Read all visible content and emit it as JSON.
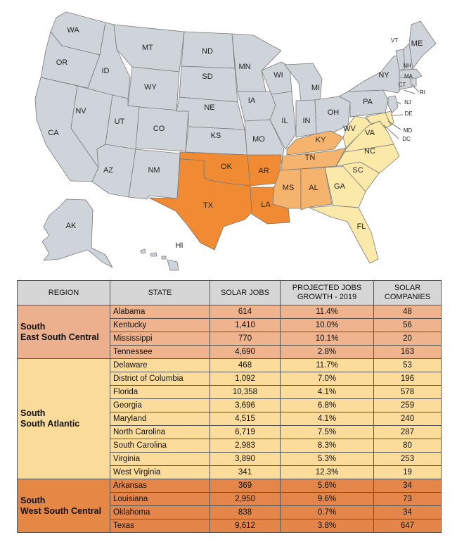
{
  "colors": {
    "other": "#ced4da",
    "west_south_central": "#f08a33",
    "east_south_central": "#f5b46e",
    "south_atlantic": "#fbe9a9",
    "border": "#7a7a7a"
  },
  "map_labels": {
    "WA": "WA",
    "OR": "OR",
    "CA": "CA",
    "ID": "ID",
    "NV": "NV",
    "MT": "MT",
    "WY": "WY",
    "UT": "UT",
    "AZ": "AZ",
    "CO": "CO",
    "NM": "NM",
    "ND": "ND",
    "SD": "SD",
    "NE": "NE",
    "KS": "KS",
    "OK": "OK",
    "TX": "TX",
    "MN": "MN",
    "IA": "IA",
    "MO": "MO",
    "AR": "AR",
    "LA": "LA",
    "WI": "WI",
    "IL": "IL",
    "MI": "MI",
    "IN": "IN",
    "OH": "OH",
    "KY": "KY",
    "TN": "TN",
    "MS": "MS",
    "AL": "AL",
    "GA": "GA",
    "FL": "FL",
    "SC": "SC",
    "NC": "NC",
    "VA": "VA",
    "WV": "WV",
    "PA": "PA",
    "NY": "NY",
    "ME": "ME",
    "VT": "VT",
    "NH": "NH",
    "MA": "MA",
    "CT": "CT",
    "RI": "RI",
    "NJ": "NJ",
    "DE": "DE",
    "MD": "MD",
    "DC": "DC",
    "AK": "AK",
    "HI": "HI"
  },
  "table": {
    "headers": {
      "region": "REGION",
      "state": "STATE",
      "jobs": "SOLAR JOBS",
      "growth_1": "PROJECTED JOBS",
      "growth_2": "GROWTH - 2019",
      "companies_1": "SOLAR",
      "companies_2": "COMPANIES"
    },
    "groups": [
      {
        "region_line1": "South",
        "region_line2": "East South Central",
        "region_color": "#ecb08e",
        "row_color": "#efb38d",
        "rows": [
          {
            "state": "Alabama",
            "jobs": "614",
            "growth": "11.4%",
            "companies": "48"
          },
          {
            "state": "Kentucky",
            "jobs": "1,410",
            "growth": "10.0%",
            "companies": "56"
          },
          {
            "state": "Mississippi",
            "jobs": "770",
            "growth": "10.1%",
            "companies": "20"
          },
          {
            "state": "Tennessee",
            "jobs": "4,690",
            "growth": "2.8%",
            "companies": "163"
          }
        ]
      },
      {
        "region_line1": "South",
        "region_line2": "South Atlantic",
        "region_color": "#fbdb9a",
        "row_color": "#fbdc9b",
        "rows": [
          {
            "state": "Delaware",
            "jobs": "468",
            "growth": "11.7%",
            "companies": "53"
          },
          {
            "state": "District of Columbia",
            "jobs": "1,092",
            "growth": "7.0%",
            "companies": "196"
          },
          {
            "state": "Florida",
            "jobs": "10,358",
            "growth": "4.1%",
            "companies": "578"
          },
          {
            "state": "Georgia",
            "jobs": "3,696",
            "growth": "6.8%",
            "companies": "259"
          },
          {
            "state": "Maryland",
            "jobs": "4,515",
            "growth": "4.1%",
            "companies": "240"
          },
          {
            "state": "North Carolina",
            "jobs": "6,719",
            "growth": "7.5%",
            "companies": "287"
          },
          {
            "state": "South Carolina",
            "jobs": "2,983",
            "growth": "8.3%",
            "companies": "80"
          },
          {
            "state": "Virginia",
            "jobs": "3,890",
            "growth": "5.3%",
            "companies": "253"
          },
          {
            "state": "West Virginia",
            "jobs": "341",
            "growth": "12.3%",
            "companies": "19"
          }
        ]
      },
      {
        "region_line1": "South",
        "region_line2": "West South Central",
        "region_color": "#e58846",
        "row_color": "#e4864a",
        "rows": [
          {
            "state": "Arkansas",
            "jobs": "369",
            "growth": "5.6%",
            "companies": "34"
          },
          {
            "state": "Louisiana",
            "jobs": "2,950",
            "growth": "9.6%",
            "companies": "73"
          },
          {
            "state": "Oklahoma",
            "jobs": "838",
            "growth": "0.7%",
            "companies": "34"
          },
          {
            "state": "Texas",
            "jobs": "9,612",
            "growth": "3.8%",
            "companies": "647"
          }
        ]
      }
    ]
  }
}
